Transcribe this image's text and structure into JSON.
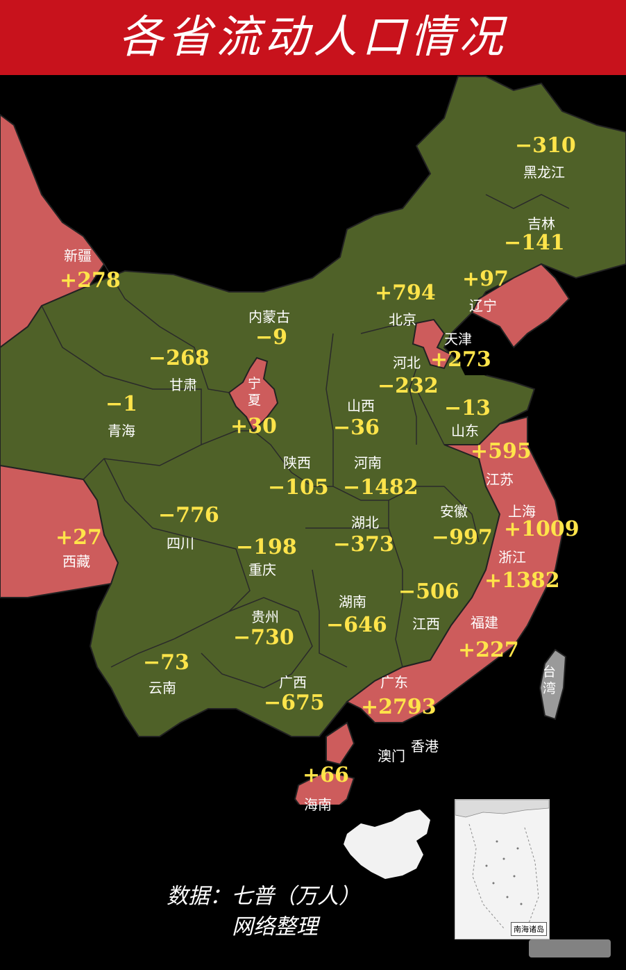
{
  "title": "各省流动人口情况",
  "colors": {
    "title_bg": "#c8121c",
    "outflow": "#4f6128",
    "inflow": "#cd5c5c",
    "value_text": "#ffe44a"
  },
  "provinces": [
    {
      "name": "新疆",
      "value": "+278"
    },
    {
      "name": "西藏",
      "value": "+27"
    },
    {
      "name": "青海",
      "value": "−1"
    },
    {
      "name": "甘肃",
      "value": "−268"
    },
    {
      "name": "内蒙古",
      "value": "−9"
    },
    {
      "name": "宁夏",
      "value": "+30"
    },
    {
      "name": "四川",
      "value": "−776"
    },
    {
      "name": "重庆",
      "value": "−198"
    },
    {
      "name": "云南",
      "value": "−73"
    },
    {
      "name": "贵州",
      "value": "−730"
    },
    {
      "name": "广西",
      "value": "−675"
    },
    {
      "name": "陕西",
      "value": "−105"
    },
    {
      "name": "山西",
      "value": "−36"
    },
    {
      "name": "河南",
      "value": "−1482"
    },
    {
      "name": "湖北",
      "value": "−373"
    },
    {
      "name": "湖南",
      "value": "−646"
    },
    {
      "name": "江西",
      "value": "−506"
    },
    {
      "name": "安徽",
      "value": "−997"
    },
    {
      "name": "广东",
      "value": "+2793"
    },
    {
      "name": "海南",
      "value": "+66"
    },
    {
      "name": "福建",
      "value": "+227"
    },
    {
      "name": "浙江",
      "value": "+1382"
    },
    {
      "name": "上海",
      "value": "+1009"
    },
    {
      "name": "江苏",
      "value": "+595"
    },
    {
      "name": "山东",
      "value": "−13"
    },
    {
      "name": "河北",
      "value": "−232"
    },
    {
      "name": "北京",
      "value": "+794"
    },
    {
      "name": "天津",
      "value": "+273"
    },
    {
      "name": "辽宁",
      "value": "+97"
    },
    {
      "name": "吉林",
      "value": "−141"
    },
    {
      "name": "黑龙江",
      "value": "−310"
    }
  ],
  "other_labels": {
    "taiwan": "台湾",
    "hongkong": "香港",
    "macau": "澳门"
  },
  "inset_label": "南海诸岛",
  "footer": {
    "source": "数据：七普（万人）",
    "credit": "网络整理"
  }
}
